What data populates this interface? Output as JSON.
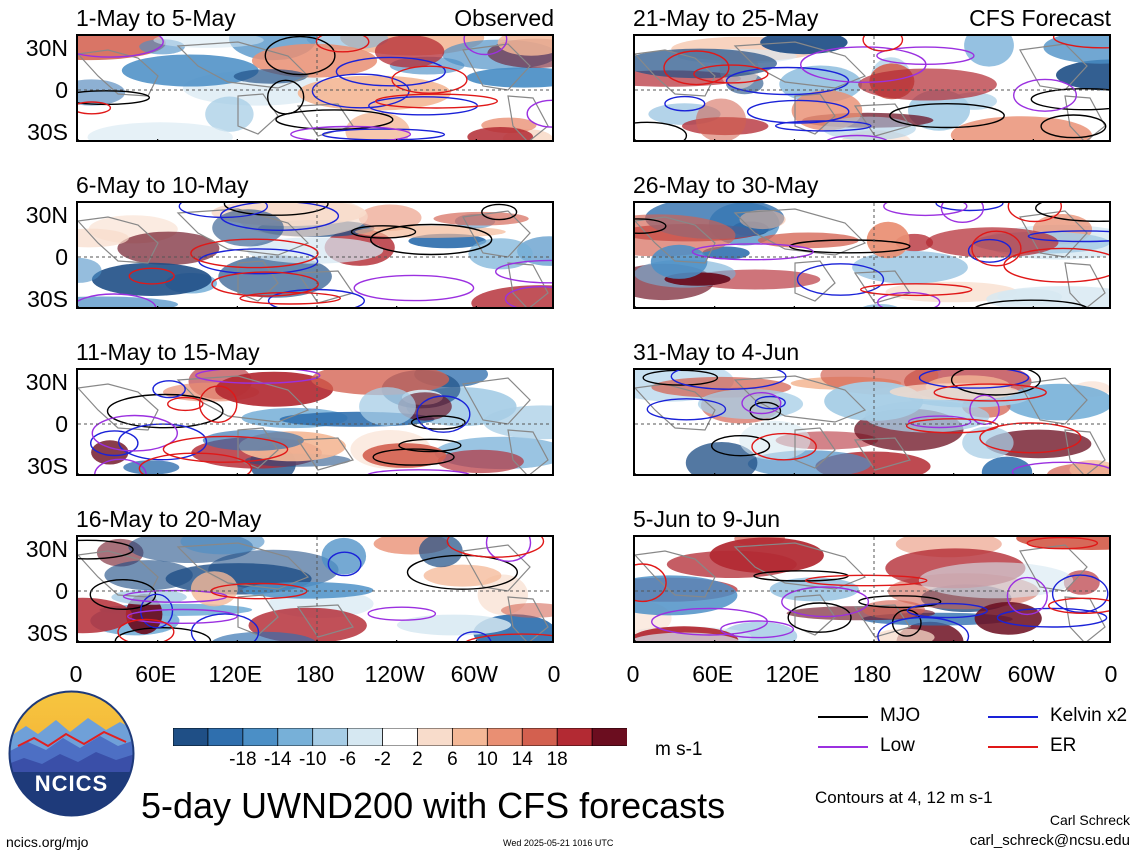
{
  "panels": [
    {
      "title": "1-May to 5-May",
      "tag": "Observed",
      "seed": 3
    },
    {
      "title": "6-May to 10-May",
      "tag": "",
      "seed": 7
    },
    {
      "title": "11-May to 15-May",
      "tag": "",
      "seed": 11
    },
    {
      "title": "16-May to 20-May",
      "tag": "",
      "seed": 13
    },
    {
      "title": "21-May to 25-May",
      "tag": "CFS Forecast",
      "seed": 17
    },
    {
      "title": "26-May to 30-May",
      "tag": "",
      "seed": 19
    },
    {
      "title": "31-May to 4-Jun",
      "tag": "",
      "seed": 23
    },
    {
      "title": "5-Jun to 9-Jun",
      "tag": "",
      "seed": 29
    }
  ],
  "lat_labels": [
    "30N",
    "0",
    "30S"
  ],
  "lon_labels": [
    "0",
    "60E",
    "120E",
    "180",
    "120W",
    "60W",
    "0"
  ],
  "colorbar": {
    "colors": [
      "#1f4f86",
      "#2f6fae",
      "#4b8fc6",
      "#77b0d8",
      "#a7cde6",
      "#d6e8f2",
      "#ffffff",
      "#f8dccb",
      "#f4b897",
      "#e98f73",
      "#d3604f",
      "#b32a33",
      "#6b0d1f"
    ],
    "labels": [
      "-18",
      "-14",
      "-10",
      "-6",
      "-2",
      "2",
      "6",
      "10",
      "14",
      "18"
    ],
    "units": "m s-1"
  },
  "legend": {
    "items": [
      {
        "label": "MJO",
        "color": "#000000"
      },
      {
        "label": "Kelvin x2",
        "color": "#1a22d8"
      },
      {
        "label": "Low",
        "color": "#9b30e0"
      },
      {
        "label": "ER",
        "color": "#e01818"
      }
    ],
    "contours_note": "Contours at 4, 12 m s-1"
  },
  "main_title": "5-day UWND200 with CFS forecasts",
  "logo_text": "NCICS",
  "footer": {
    "left": "ncics.org/mjo",
    "center": "Wed 2025-05-21 1016 UTC",
    "author": "Carl Schreck",
    "email": "carl_schreck@ncsu.edu"
  }
}
